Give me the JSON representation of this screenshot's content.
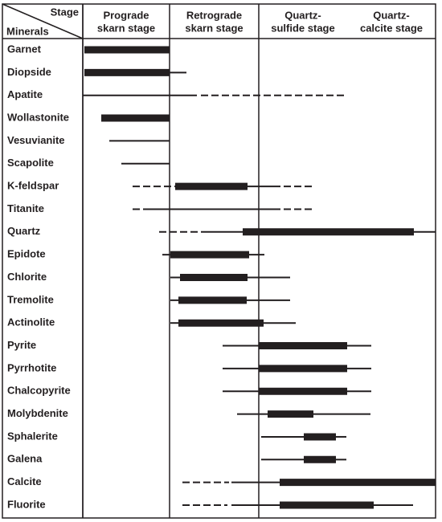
{
  "header": {
    "stage_label": "Stage",
    "minerals_label": "Minerals"
  },
  "stages": [
    [
      "Prograde",
      "skarn stage"
    ],
    [
      "Retrograde",
      "skarn stage"
    ],
    [
      "Quartz-",
      "sulfide stage"
    ],
    [
      "Quartz-",
      "calcite stage"
    ]
  ],
  "minerals": [
    "Garnet",
    "Diopside",
    "Apatite",
    "Wollastonite",
    "Vesuvianite",
    "Scapolite",
    "K-feldspar",
    "Titanite",
    "Quartz",
    "Epidote",
    "Chlorite",
    "Tremolite",
    "Actinolite",
    "Pyrite",
    "Pyrrhotite",
    "Chalcopyrite",
    "Molybdenite",
    "Sphalerite",
    "Galena",
    "Calcite",
    "Fluorite"
  ]
}
